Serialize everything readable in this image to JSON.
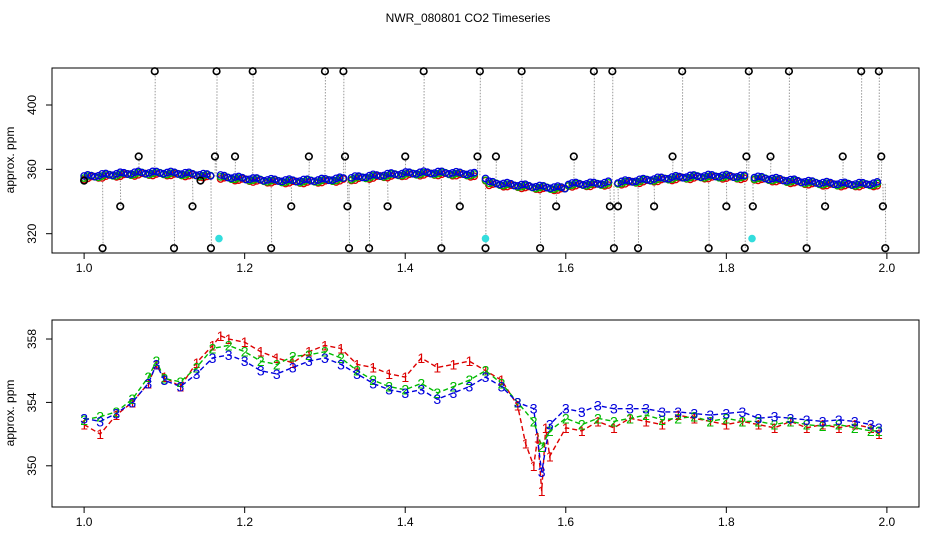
{
  "title": "NWR_080801  CO2 Timeseries",
  "chart_data": [
    {
      "type": "scatter",
      "title": "NWR_080801  CO2 Timeseries",
      "ylabel": "approx. ppm",
      "xlabel": "",
      "xlim": [
        0.96,
        2.04
      ],
      "ylim": [
        308,
        423
      ],
      "xticks": [
        1.0,
        1.2,
        1.4,
        1.6,
        1.8,
        2.0
      ],
      "xtick_labels": [
        "1.0",
        "1.2",
        "1.4",
        "1.6",
        "1.8",
        "2.0"
      ],
      "yticks": [
        320,
        360,
        400
      ],
      "ytick_labels": [
        "320",
        "360",
        "400"
      ],
      "colors": {
        "red": "#dd0000",
        "green": "#00bb00",
        "blue": "#0000dd",
        "cyan": "#33dddd",
        "black": "#000000",
        "grey": "#999999"
      },
      "series": [
        {
          "name": "black-circles",
          "color": "#000000",
          "points": [
            [
              1.0,
              353
            ],
            [
              1.023,
              311
            ],
            [
              1.045,
              337
            ],
            [
              1.068,
              368
            ],
            [
              1.088,
              421
            ],
            [
              1.112,
              311
            ],
            [
              1.135,
              337
            ],
            [
              1.145,
              353
            ],
            [
              1.158,
              311
            ],
            [
              1.163,
              368
            ],
            [
              1.165,
              421
            ],
            [
              1.188,
              368
            ],
            [
              1.21,
              421
            ],
            [
              1.233,
              311
            ],
            [
              1.258,
              337
            ],
            [
              1.28,
              368
            ],
            [
              1.3,
              421
            ],
            [
              1.323,
              421
            ],
            [
              1.325,
              368
            ],
            [
              1.328,
              337
            ],
            [
              1.33,
              311
            ],
            [
              1.355,
              311
            ],
            [
              1.378,
              337
            ],
            [
              1.4,
              368
            ],
            [
              1.423,
              421
            ],
            [
              1.445,
              311
            ],
            [
              1.468,
              337
            ],
            [
              1.49,
              368
            ],
            [
              1.493,
              421
            ],
            [
              1.5,
              311
            ],
            [
              1.513,
              368
            ],
            [
              1.545,
              421
            ],
            [
              1.568,
              311
            ],
            [
              1.588,
              337
            ],
            [
              1.61,
              368
            ],
            [
              1.635,
              421
            ],
            [
              1.655,
              337
            ],
            [
              1.658,
              421
            ],
            [
              1.66,
              311
            ],
            [
              1.665,
              337
            ],
            [
              1.69,
              311
            ],
            [
              1.71,
              337
            ],
            [
              1.733,
              368
            ],
            [
              1.745,
              421
            ],
            [
              1.778,
              311
            ],
            [
              1.8,
              337
            ],
            [
              1.823,
              311
            ],
            [
              1.825,
              368
            ],
            [
              1.828,
              421
            ],
            [
              1.833,
              337
            ],
            [
              1.855,
              368
            ],
            [
              1.878,
              421
            ],
            [
              1.9,
              311
            ],
            [
              1.923,
              337
            ],
            [
              1.945,
              368
            ],
            [
              1.968,
              421
            ],
            [
              1.99,
              421
            ],
            [
              1.993,
              368
            ],
            [
              1.995,
              337
            ],
            [
              1.998,
              311
            ]
          ]
        },
        {
          "name": "cyan",
          "color": "#33dddd",
          "points": [
            [
              1.168,
              317
            ],
            [
              1.5,
              317
            ],
            [
              1.832,
              317
            ]
          ]
        }
      ]
    },
    {
      "type": "line",
      "title": "",
      "ylabel": "approx. ppm",
      "xlabel": "",
      "xlim": [
        0.96,
        2.04
      ],
      "ylim": [
        347.4,
        359.2
      ],
      "xticks": [
        1.0,
        1.2,
        1.4,
        1.6,
        1.8,
        2.0
      ],
      "xtick_labels": [
        "1.0",
        "1.2",
        "1.4",
        "1.6",
        "1.8",
        "2.0"
      ],
      "yticks": [
        350,
        354,
        358
      ],
      "ytick_labels": [
        "350",
        "354",
        "358"
      ],
      "series": [
        {
          "name": "1",
          "marker": "1",
          "color": "#dd0000",
          "x": [
            1.0,
            1.02,
            1.04,
            1.06,
            1.08,
            1.09,
            1.1,
            1.12,
            1.14,
            1.16,
            1.17,
            1.18,
            1.2,
            1.22,
            1.24,
            1.26,
            1.28,
            1.3,
            1.32,
            1.34,
            1.36,
            1.38,
            1.4,
            1.42,
            1.44,
            1.46,
            1.48,
            1.5,
            1.52,
            1.54,
            1.55,
            1.56,
            1.565,
            1.57,
            1.575,
            1.58,
            1.6,
            1.62,
            1.64,
            1.66,
            1.68,
            1.7,
            1.72,
            1.74,
            1.76,
            1.78,
            1.8,
            1.82,
            1.84,
            1.86,
            1.88,
            1.9,
            1.92,
            1.94,
            1.96,
            1.98,
            1.99
          ],
          "values": [
            352.6,
            352.0,
            353.2,
            354.0,
            355.2,
            356.4,
            355.6,
            355.0,
            356.5,
            357.6,
            358.2,
            358.0,
            357.8,
            357.2,
            356.8,
            356.5,
            357.2,
            357.6,
            357.4,
            356.4,
            356.2,
            355.8,
            355.6,
            356.8,
            356.2,
            356.4,
            356.6,
            356.0,
            355.4,
            353.8,
            351.4,
            350.0,
            351.8,
            348.4,
            352.4,
            350.6,
            352.4,
            352.2,
            352.8,
            352.4,
            353.0,
            352.8,
            352.6,
            353.2,
            353.0,
            352.8,
            352.6,
            352.8,
            352.6,
            352.4,
            352.8,
            352.4,
            352.6,
            352.4,
            352.6,
            352.4,
            352.0
          ]
        },
        {
          "name": "2",
          "marker": "2",
          "color": "#00bb00",
          "x": [
            1.0,
            1.02,
            1.04,
            1.06,
            1.08,
            1.09,
            1.1,
            1.12,
            1.14,
            1.16,
            1.18,
            1.2,
            1.22,
            1.24,
            1.26,
            1.28,
            1.3,
            1.32,
            1.34,
            1.36,
            1.38,
            1.4,
            1.42,
            1.44,
            1.46,
            1.48,
            1.5,
            1.52,
            1.54,
            1.56,
            1.57,
            1.58,
            1.6,
            1.62,
            1.64,
            1.66,
            1.68,
            1.7,
            1.72,
            1.74,
            1.76,
            1.78,
            1.8,
            1.82,
            1.84,
            1.86,
            1.88,
            1.9,
            1.92,
            1.94,
            1.96,
            1.98,
            1.99
          ],
          "values": [
            352.9,
            353.1,
            353.4,
            354.2,
            355.6,
            356.6,
            355.5,
            355.3,
            356.2,
            357.4,
            357.6,
            357.2,
            356.6,
            356.4,
            356.9,
            357.0,
            357.2,
            356.8,
            356.0,
            355.4,
            355.0,
            354.8,
            355.2,
            354.6,
            355.0,
            355.4,
            356.0,
            355.2,
            354.0,
            352.8,
            351.2,
            352.2,
            353.0,
            352.6,
            353.0,
            352.8,
            353.0,
            353.2,
            352.9,
            353.0,
            353.1,
            352.8,
            353.0,
            352.8,
            352.8,
            352.6,
            352.8,
            352.6,
            352.5,
            352.6,
            352.4,
            352.2,
            352.2
          ]
        },
        {
          "name": "3",
          "marker": "3",
          "color": "#0000dd",
          "x": [
            1.0,
            1.02,
            1.04,
            1.06,
            1.08,
            1.09,
            1.1,
            1.12,
            1.14,
            1.16,
            1.18,
            1.2,
            1.22,
            1.24,
            1.26,
            1.28,
            1.3,
            1.32,
            1.34,
            1.36,
            1.38,
            1.4,
            1.42,
            1.44,
            1.46,
            1.48,
            1.5,
            1.52,
            1.54,
            1.56,
            1.57,
            1.58,
            1.6,
            1.62,
            1.64,
            1.66,
            1.68,
            1.7,
            1.72,
            1.74,
            1.76,
            1.78,
            1.8,
            1.82,
            1.84,
            1.86,
            1.88,
            1.9,
            1.92,
            1.94,
            1.96,
            1.98,
            1.99
          ],
          "values": [
            353.0,
            352.8,
            353.3,
            354.0,
            355.2,
            356.4,
            355.4,
            355.0,
            355.8,
            356.8,
            357.0,
            356.6,
            356.0,
            355.8,
            356.2,
            356.6,
            356.8,
            356.4,
            355.8,
            355.2,
            354.8,
            354.6,
            354.8,
            354.2,
            354.6,
            355.0,
            355.6,
            355.0,
            354.0,
            353.6,
            349.6,
            352.6,
            353.6,
            353.4,
            353.8,
            353.6,
            353.6,
            353.6,
            353.4,
            353.4,
            353.3,
            353.2,
            353.3,
            353.4,
            353.0,
            353.1,
            353.0,
            352.9,
            352.8,
            352.9,
            352.8,
            352.6,
            352.4
          ]
        }
      ]
    }
  ]
}
